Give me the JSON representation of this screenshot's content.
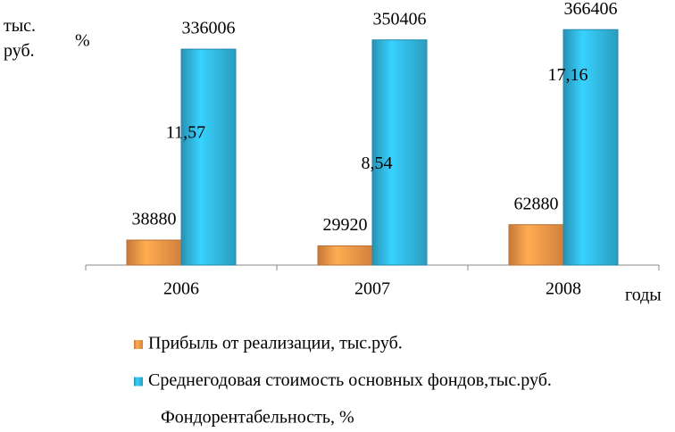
{
  "chart_data": {
    "type": "bar",
    "y_label": "тыс. руб.",
    "y2_label": "%",
    "x_label": "годы",
    "categories": [
      "2006",
      "2007",
      "2008"
    ],
    "series": [
      {
        "name": "Прибыль от реализации,  тыс.руб.",
        "color": "#f79646",
        "values": [
          38880,
          29920,
          62880
        ]
      },
      {
        "name": "Среднегодовая стоимость основных фондов,тыс.руб.",
        "color": "#31b7e0",
        "values": [
          336006,
          350406,
          366406
        ]
      },
      {
        "name": "Фондорентабельность, %",
        "axis": "y2",
        "values": [
          11.57,
          8.54,
          17.16
        ],
        "value_labels": [
          "11,57",
          "8,54",
          "17,16"
        ]
      }
    ],
    "ylim": [
      0,
      400000
    ],
    "y2lim": [
      0,
      25
    ]
  }
}
